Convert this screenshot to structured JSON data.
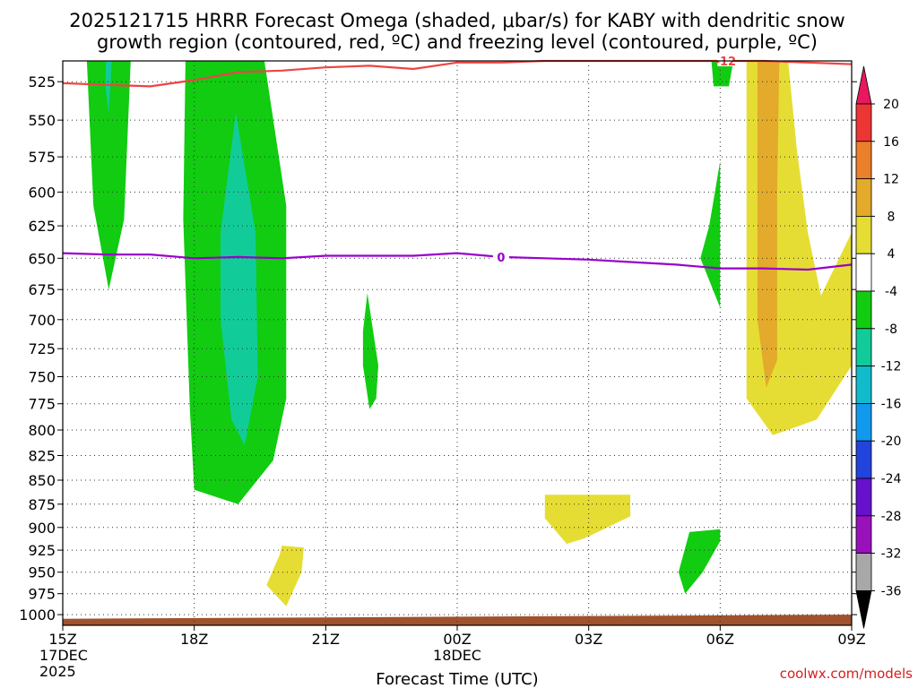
{
  "chart_data": {
    "type": "contour",
    "title": "2025121715 HRRR Forecast Omega (shaded, μbar/s) for KABY with dendritic snow growth region (contoured, red, ºC) and freezing level (contoured, purple, ºC)",
    "title_lines": [
      "2025121715 HRRR Forecast Omega (shaded, μbar/s) for KABY with dendritic snow",
      "growth region (contoured, red, ºC) and freezing level (contoured, purple, ºC)"
    ],
    "xlabel": "Forecast Time (UTC)",
    "credit": "coolwx.com/models",
    "x_ticks": [
      {
        "hour": 0,
        "label": "15Z",
        "sub": [
          "17DEC",
          "2025"
        ]
      },
      {
        "hour": 3,
        "label": "18Z",
        "sub": []
      },
      {
        "hour": 6,
        "label": "21Z",
        "sub": []
      },
      {
        "hour": 9,
        "label": "00Z",
        "sub": [
          "18DEC"
        ]
      },
      {
        "hour": 12,
        "label": "03Z",
        "sub": []
      },
      {
        "hour": 15,
        "label": "06Z",
        "sub": []
      },
      {
        "hour": 18,
        "label": "09Z",
        "sub": []
      }
    ],
    "xlim": [
      0,
      18
    ],
    "y_ticks": [
      525,
      550,
      575,
      600,
      625,
      650,
      675,
      700,
      725,
      750,
      775,
      800,
      825,
      850,
      875,
      900,
      925,
      950,
      975,
      1000
    ],
    "ylim": [
      512,
      1013
    ],
    "y_scale": "log-pressure",
    "colorbar": {
      "levels": [
        20,
        16,
        12,
        8,
        4,
        -4,
        -8,
        -12,
        -16,
        -20,
        -24,
        -28,
        -32,
        -36
      ],
      "colors": [
        "#e8185e",
        "#ee3535",
        "#ec7f2a",
        "#e3aa2b",
        "#e5dd33",
        "#ffffff",
        "#11cc11",
        "#11cc99",
        "#11bbcc",
        "#1199ee",
        "#2244dd",
        "#6611cc",
        "#9911bb",
        "#a8a8a8",
        "#000000"
      ]
    },
    "omega_regions": [
      {
        "value": "-8 to -4",
        "color": "#11cc11",
        "points": [
          [
            0.55,
            512
          ],
          [
            1.55,
            512
          ],
          [
            1.4,
            620
          ],
          [
            1.05,
            675
          ],
          [
            0.7,
            610
          ]
        ]
      },
      {
        "value": "-12 to -8",
        "color": "#11cc99",
        "points": [
          [
            0.98,
            512
          ],
          [
            1.12,
            512
          ],
          [
            1.05,
            545
          ],
          [
            0.98,
            530
          ]
        ]
      },
      {
        "value": "-8 to -4",
        "color": "#11cc11",
        "points": [
          [
            2.8,
            512
          ],
          [
            4.6,
            512
          ],
          [
            5.1,
            610
          ],
          [
            5.1,
            770
          ],
          [
            4.8,
            830
          ],
          [
            4.0,
            875
          ],
          [
            3.0,
            860
          ],
          [
            2.9,
            780
          ],
          [
            2.75,
            620
          ]
        ]
      },
      {
        "value": "-12 to -8",
        "color": "#11cc99",
        "points": [
          [
            3.95,
            545
          ],
          [
            4.4,
            630
          ],
          [
            4.45,
            750
          ],
          [
            4.15,
            815
          ],
          [
            3.85,
            790
          ],
          [
            3.6,
            700
          ],
          [
            3.6,
            630
          ]
        ]
      },
      {
        "value": "-8 to -4",
        "color": "#11cc11",
        "points": [
          [
            6.95,
            678
          ],
          [
            7.2,
            740
          ],
          [
            7.15,
            770
          ],
          [
            7.0,
            780
          ],
          [
            6.85,
            740
          ],
          [
            6.85,
            710
          ]
        ]
      },
      {
        "value": "4 to 8",
        "color": "#e5dd33",
        "points": [
          [
            5.0,
            920
          ],
          [
            5.5,
            922
          ],
          [
            5.45,
            950
          ],
          [
            5.1,
            990
          ],
          [
            4.65,
            965
          ],
          [
            4.95,
            930
          ]
        ]
      },
      {
        "value": "4 to 8",
        "color": "#e5dd33",
        "points": [
          [
            11.0,
            865
          ],
          [
            12.95,
            865
          ],
          [
            12.95,
            888
          ],
          [
            11.9,
            912
          ],
          [
            11.5,
            918
          ],
          [
            11.0,
            890
          ]
        ]
      },
      {
        "value": "-8 to -4",
        "color": "#11cc11",
        "points": [
          [
            15.0,
            902
          ],
          [
            15.0,
            915
          ],
          [
            14.6,
            950
          ],
          [
            14.2,
            975
          ],
          [
            14.05,
            950
          ],
          [
            14.3,
            905
          ]
        ]
      },
      {
        "value": "-8 to -4",
        "color": "#11cc11",
        "points": [
          [
            14.75,
            625
          ],
          [
            15.0,
            578
          ],
          [
            15.0,
            690
          ],
          [
            14.55,
            650
          ]
        ]
      },
      {
        "value": "-8 to -4",
        "color": "#11cc11",
        "points": [
          [
            14.8,
            512
          ],
          [
            15.3,
            512
          ],
          [
            15.2,
            528
          ],
          [
            14.85,
            528
          ]
        ]
      },
      {
        "value": "4 to 8",
        "color": "#e5dd33",
        "points": [
          [
            15.6,
            512
          ],
          [
            16.55,
            512
          ],
          [
            16.75,
            570
          ],
          [
            17.0,
            630
          ],
          [
            17.3,
            680
          ],
          [
            18.0,
            630
          ],
          [
            18.0,
            740
          ],
          [
            17.2,
            790
          ],
          [
            16.2,
            805
          ],
          [
            15.6,
            770
          ],
          [
            15.6,
            600
          ]
        ]
      },
      {
        "value": "8 to 12",
        "color": "#e3aa2b",
        "points": [
          [
            15.85,
            512
          ],
          [
            16.35,
            512
          ],
          [
            16.3,
            600
          ],
          [
            16.3,
            735
          ],
          [
            16.05,
            760
          ],
          [
            15.85,
            700
          ]
        ]
      }
    ],
    "dendritic_line": {
      "label": "-12",
      "color": "#ee4444",
      "points": [
        [
          0,
          526
        ],
        [
          1,
          527
        ],
        [
          2,
          528
        ],
        [
          3,
          524
        ],
        [
          4,
          519
        ],
        [
          5,
          518
        ],
        [
          6,
          516
        ],
        [
          7,
          515
        ],
        [
          8,
          517
        ],
        [
          9,
          513
        ],
        [
          10,
          513
        ],
        [
          11,
          512
        ],
        [
          12,
          512
        ],
        [
          13,
          512
        ],
        [
          14,
          512
        ],
        [
          15,
          512
        ],
        [
          16,
          512
        ],
        [
          17,
          513
        ],
        [
          18,
          514
        ]
      ]
    },
    "freezing_line": {
      "label": "0",
      "color": "#9900cc",
      "points": [
        [
          0,
          646
        ],
        [
          1,
          647
        ],
        [
          2,
          647
        ],
        [
          3,
          650
        ],
        [
          4,
          649
        ],
        [
          5,
          650
        ],
        [
          6,
          648
        ],
        [
          7,
          648
        ],
        [
          8,
          648
        ],
        [
          9,
          646
        ],
        [
          10,
          649
        ],
        [
          11,
          650
        ],
        [
          12,
          651
        ],
        [
          13,
          653
        ],
        [
          14,
          655
        ],
        [
          15,
          658
        ],
        [
          16,
          658
        ],
        [
          17,
          659
        ],
        [
          18,
          655
        ]
      ]
    },
    "terrain": {
      "color": "#a0522d",
      "pressure_left": 1005,
      "pressure_right": 1000
    }
  }
}
